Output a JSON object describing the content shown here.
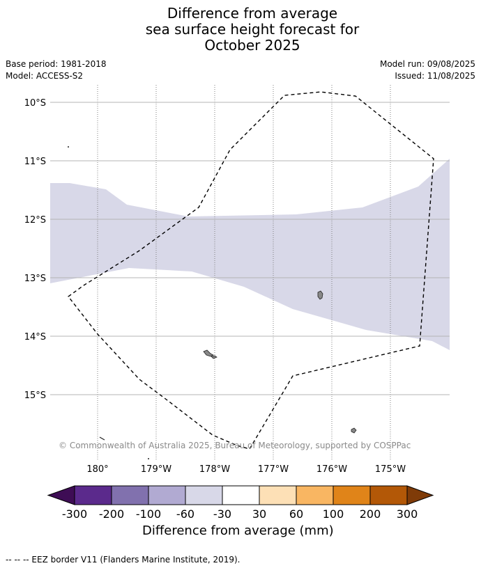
{
  "title": {
    "lines": [
      "Difference from average",
      "sea surface height forecast for",
      "October 2025"
    ]
  },
  "info": {
    "base_period": "Base period: 1981-2018",
    "model": "Model: ACCESS-S2",
    "model_run": "Model run: 09/08/2025",
    "issued": "Issued: 11/08/2025"
  },
  "map": {
    "lon_labels": [
      "180°",
      "179°W",
      "178°W",
      "177°W",
      "176°W",
      "175°W"
    ],
    "lat_labels": [
      "10°S",
      "11°S",
      "12°S",
      "13°S",
      "14°S",
      "15°S"
    ],
    "copyright": "© Commonwealth of Australia 2025, Bureau of Meteorology, supported by COSPPac",
    "anomaly_band_color": "#d8d8e8",
    "anomaly_band_class": "-60 to -30"
  },
  "colorbar": {
    "title": "Difference from average (mm)",
    "tick_labels": [
      "-300",
      "-200",
      "-100",
      "-60",
      "-30",
      "30",
      "60",
      "100",
      "200",
      "300"
    ],
    "colors": [
      "#3e0d55",
      "#5b2a8c",
      "#8171ae",
      "#b1aad2",
      "#d8d8e8",
      "#ffffff",
      "#fde0b6",
      "#f9b662",
      "#e08419",
      "#b35807",
      "#7f3b08"
    ]
  },
  "legend": {
    "text": "--  --  -- EEZ border V11 (Flanders Marine Institute, 2019)."
  }
}
